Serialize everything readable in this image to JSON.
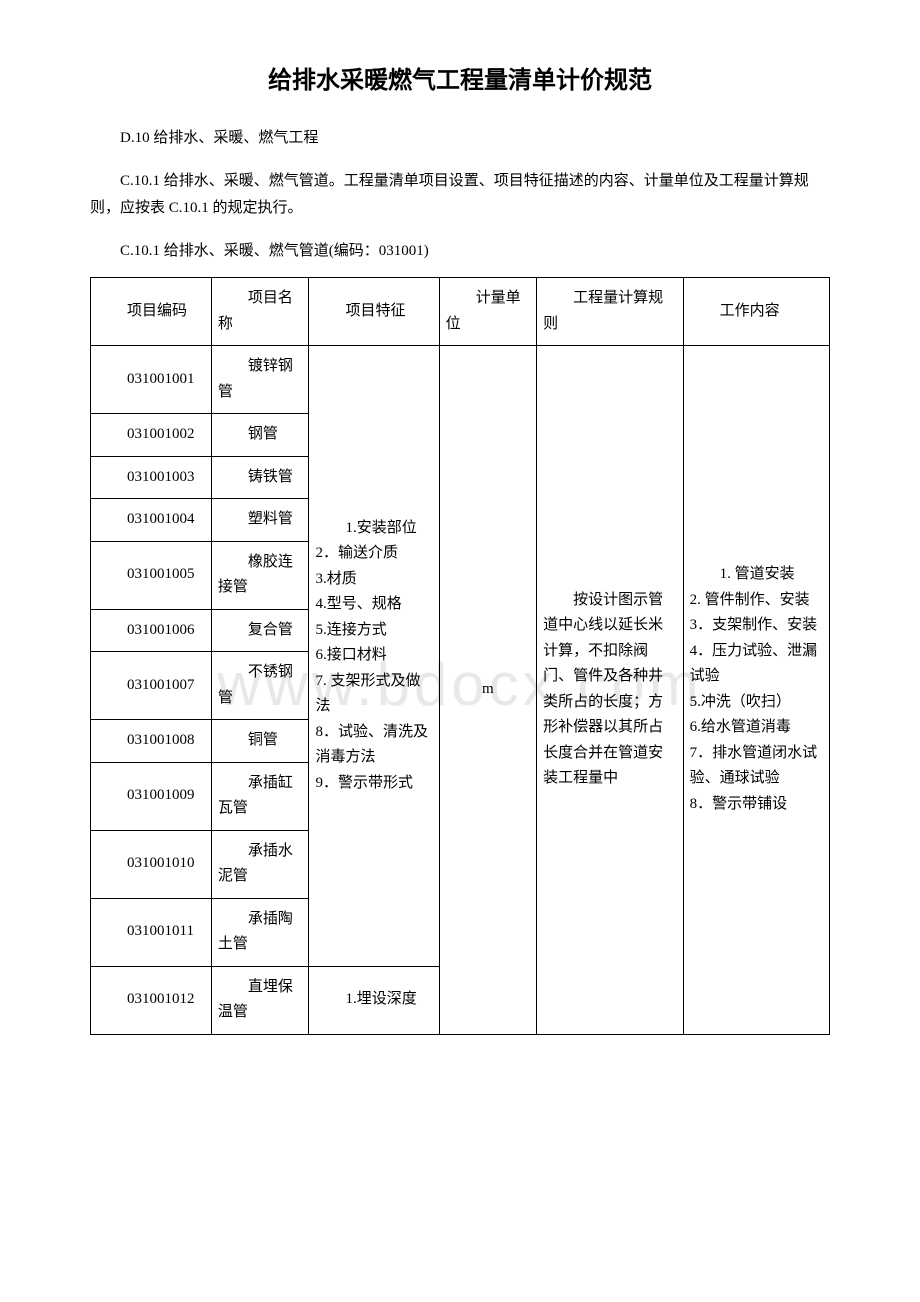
{
  "watermark": "www.bdocx.com",
  "title": "给排水采暖燃气工程量清单计价规范",
  "section_d10": "D.10 给排水、采暖、燃气工程",
  "section_c101": "C.10.1 给排水、采暖、燃气管道。工程量清单项目设置、项目特征描述的内容、计量单位及工程量计算规则，应按表 C.10.1 的规定执行。",
  "table_caption": "C.10.1 给排水、采暖、燃气管道(编码：031001)",
  "headers": {
    "code": "项目编码",
    "name": "项目名称",
    "feature": "项目特征",
    "unit": "计量单位",
    "rule": "工程量计算规则",
    "work": "工作内容"
  },
  "rows": [
    {
      "code": "031001001",
      "name": "镀锌钢管"
    },
    {
      "code": "031001002",
      "name": "钢管"
    },
    {
      "code": "031001003",
      "name": "铸铁管"
    },
    {
      "code": "031001004",
      "name": "塑料管"
    },
    {
      "code": "031001005",
      "name": "橡胶连接管"
    },
    {
      "code": "031001006",
      "name": "复合管"
    },
    {
      "code": "031001007",
      "name": "不锈钢管"
    },
    {
      "code": "031001008",
      "name": "铜管"
    },
    {
      "code": "031001009",
      "name": "承插缸瓦管"
    },
    {
      "code": "031001010",
      "name": "承插水泥管"
    },
    {
      "code": "031001011",
      "name": "承插陶土管"
    },
    {
      "code": "031001012",
      "name": "直埋保温管"
    }
  ],
  "feature_list_main": "1.安装部位\n2．输送介质\n3.材质\n4.型号、规格\n5.连接方式\n6.接口材料\n7. 支架形式及做法\n8．试验、清洗及消毒方法\n9．警示带形式",
  "feature_list_12": "1.埋设深度",
  "unit_value": "m",
  "rule_text": "按设计图示管道中心线以延长米计算，不扣除阀门、管件及各种井类所占的长度；方形补偿器以其所占长度合并在管道安装工程量中",
  "work_text": "1. 管道安装\n2. 管件制作、安装\n3．支架制作、安装\n4．压力试验、泄漏试验\n5.冲洗（吹扫）\n6.给水管道消毒\n7．排水管道闭水试验、通球试验\n8．警示带铺设",
  "colors": {
    "background": "#ffffff",
    "text": "#000000",
    "border": "#000000",
    "watermark": "#e8e8e8"
  },
  "fonts": {
    "title_size": 24,
    "body_size": 15,
    "title_family": "SimHei",
    "body_family": "SimSun"
  }
}
